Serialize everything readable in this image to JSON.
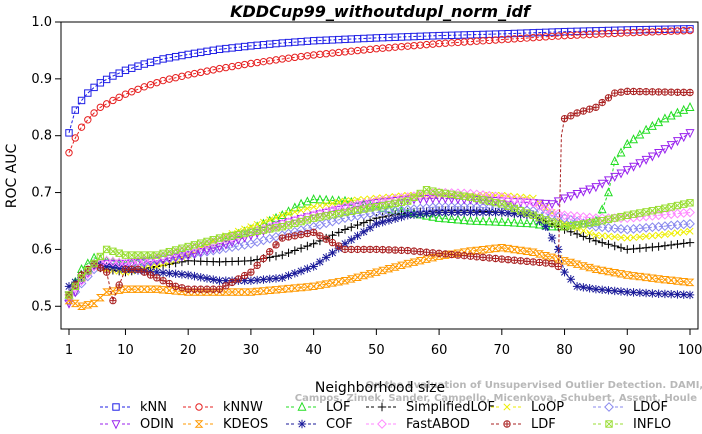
{
  "chart_data": {
    "type": "line",
    "title": "KDDCup99_withoutdupl_norm_idf",
    "xlabel": "Neighborhood size",
    "ylabel": "ROC AUC",
    "xlim": [
      1,
      100
    ],
    "ylim": [
      0.46,
      1.0
    ],
    "xticks": [
      1,
      10,
      20,
      30,
      40,
      50,
      60,
      70,
      80,
      90,
      100
    ],
    "yticks": [
      0.5,
      0.6,
      0.7,
      0.8,
      0.9,
      1.0
    ],
    "xtick_labels": [
      "1",
      "10",
      "20",
      "30",
      "40",
      "50",
      "60",
      "70",
      "80",
      "90",
      "100"
    ],
    "ytick_labels": [
      "0.5",
      "0.6",
      "0.7",
      "0.8",
      "0.9",
      "1.0"
    ],
    "watermark": [
      "Campos, Zimek, Sander, Campello, Micenkova, Schubert, Assent, Houle",
      "On the Evaluation of Unsupervised Outlier Detection. DAMI, 2015."
    ],
    "legend_position": "bottom",
    "series": [
      {
        "name": "kNN",
        "color": "#1f1fe6",
        "marker": "square",
        "points": [
          [
            1,
            0.805
          ],
          [
            2,
            0.845
          ],
          [
            3,
            0.862
          ],
          [
            4,
            0.875
          ],
          [
            5,
            0.885
          ],
          [
            6,
            0.893
          ],
          [
            8,
            0.905
          ],
          [
            10,
            0.915
          ],
          [
            13,
            0.926
          ],
          [
            16,
            0.935
          ],
          [
            20,
            0.943
          ],
          [
            25,
            0.952
          ],
          [
            30,
            0.958
          ],
          [
            35,
            0.963
          ],
          [
            40,
            0.967
          ],
          [
            50,
            0.972
          ],
          [
            60,
            0.976
          ],
          [
            70,
            0.979
          ],
          [
            80,
            0.983
          ],
          [
            90,
            0.986
          ],
          [
            100,
            0.988
          ]
        ]
      },
      {
        "name": "kNNW",
        "color": "#e62020",
        "marker": "circle",
        "points": [
          [
            1,
            0.77
          ],
          [
            2,
            0.796
          ],
          [
            3,
            0.815
          ],
          [
            4,
            0.828
          ],
          [
            5,
            0.84
          ],
          [
            6,
            0.85
          ],
          [
            8,
            0.862
          ],
          [
            10,
            0.873
          ],
          [
            13,
            0.886
          ],
          [
            16,
            0.897
          ],
          [
            20,
            0.907
          ],
          [
            25,
            0.918
          ],
          [
            30,
            0.927
          ],
          [
            35,
            0.935
          ],
          [
            40,
            0.942
          ],
          [
            50,
            0.953
          ],
          [
            60,
            0.962
          ],
          [
            70,
            0.969
          ],
          [
            80,
            0.976
          ],
          [
            90,
            0.981
          ],
          [
            100,
            0.985
          ]
        ]
      },
      {
        "name": "LOF",
        "color": "#22dd22",
        "marker": "triangle-up",
        "points": [
          [
            1,
            0.52
          ],
          [
            3,
            0.565
          ],
          [
            5,
            0.585
          ],
          [
            7,
            0.58
          ],
          [
            10,
            0.575
          ],
          [
            15,
            0.585
          ],
          [
            20,
            0.6
          ],
          [
            25,
            0.615
          ],
          [
            30,
            0.635
          ],
          [
            35,
            0.66
          ],
          [
            38,
            0.68
          ],
          [
            40,
            0.688
          ],
          [
            45,
            0.685
          ],
          [
            50,
            0.675
          ],
          [
            55,
            0.665
          ],
          [
            60,
            0.655
          ],
          [
            65,
            0.65
          ],
          [
            70,
            0.648
          ],
          [
            75,
            0.645
          ],
          [
            78,
            0.64
          ],
          [
            80,
            0.64
          ],
          [
            83,
            0.645
          ],
          [
            85,
            0.65
          ],
          [
            86,
            0.67
          ],
          [
            87,
            0.7
          ],
          [
            88,
            0.755
          ],
          [
            90,
            0.785
          ],
          [
            93,
            0.81
          ],
          [
            96,
            0.83
          ],
          [
            100,
            0.85
          ]
        ]
      },
      {
        "name": "SimplifiedLOF",
        "color": "#000000",
        "marker": "plus",
        "points": [
          [
            1,
            0.525
          ],
          [
            3,
            0.555
          ],
          [
            5,
            0.57
          ],
          [
            7,
            0.565
          ],
          [
            10,
            0.56
          ],
          [
            15,
            0.57
          ],
          [
            20,
            0.58
          ],
          [
            25,
            0.578
          ],
          [
            30,
            0.58
          ],
          [
            35,
            0.59
          ],
          [
            40,
            0.61
          ],
          [
            45,
            0.635
          ],
          [
            50,
            0.655
          ],
          [
            55,
            0.665
          ],
          [
            60,
            0.668
          ],
          [
            65,
            0.668
          ],
          [
            70,
            0.665
          ],
          [
            75,
            0.66
          ],
          [
            78,
            0.645
          ],
          [
            80,
            0.635
          ],
          [
            85,
            0.615
          ],
          [
            90,
            0.6
          ],
          [
            95,
            0.605
          ],
          [
            100,
            0.612
          ]
        ]
      },
      {
        "name": "LoOP",
        "color": "#eeee00",
        "marker": "cross",
        "points": [
          [
            1,
            0.52
          ],
          [
            3,
            0.55
          ],
          [
            5,
            0.57
          ],
          [
            7,
            0.565
          ],
          [
            10,
            0.56
          ],
          [
            15,
            0.57
          ],
          [
            20,
            0.59
          ],
          [
            25,
            0.62
          ],
          [
            30,
            0.64
          ],
          [
            35,
            0.66
          ],
          [
            40,
            0.675
          ],
          [
            45,
            0.685
          ],
          [
            50,
            0.69
          ],
          [
            55,
            0.695
          ],
          [
            60,
            0.695
          ],
          [
            65,
            0.695
          ],
          [
            70,
            0.695
          ],
          [
            75,
            0.69
          ],
          [
            78,
            0.665
          ],
          [
            80,
            0.645
          ],
          [
            85,
            0.625
          ],
          [
            90,
            0.62
          ],
          [
            95,
            0.625
          ],
          [
            100,
            0.632
          ]
        ]
      },
      {
        "name": "LDOF",
        "color": "#8888ee",
        "marker": "diamond",
        "points": [
          [
            1,
            0.51
          ],
          [
            3,
            0.54
          ],
          [
            5,
            0.565
          ],
          [
            7,
            0.575
          ],
          [
            10,
            0.57
          ],
          [
            15,
            0.58
          ],
          [
            20,
            0.59
          ],
          [
            25,
            0.6
          ],
          [
            30,
            0.61
          ],
          [
            35,
            0.625
          ],
          [
            40,
            0.64
          ],
          [
            45,
            0.655
          ],
          [
            50,
            0.665
          ],
          [
            55,
            0.67
          ],
          [
            60,
            0.675
          ],
          [
            65,
            0.675
          ],
          [
            70,
            0.672
          ],
          [
            75,
            0.668
          ],
          [
            78,
            0.66
          ],
          [
            80,
            0.655
          ],
          [
            85,
            0.64
          ],
          [
            90,
            0.635
          ],
          [
            95,
            0.64
          ],
          [
            100,
            0.645
          ]
        ]
      },
      {
        "name": "ODIN",
        "color": "#9922ee",
        "marker": "triangle-down",
        "points": [
          [
            1,
            0.505
          ],
          [
            3,
            0.545
          ],
          [
            5,
            0.57
          ],
          [
            7,
            0.575
          ],
          [
            10,
            0.575
          ],
          [
            15,
            0.58
          ],
          [
            20,
            0.59
          ],
          [
            25,
            0.605
          ],
          [
            30,
            0.625
          ],
          [
            35,
            0.645
          ],
          [
            40,
            0.66
          ],
          [
            45,
            0.672
          ],
          [
            50,
            0.682
          ],
          [
            55,
            0.688
          ],
          [
            60,
            0.69
          ],
          [
            65,
            0.688
          ],
          [
            70,
            0.685
          ],
          [
            75,
            0.682
          ],
          [
            78,
            0.68
          ],
          [
            80,
            0.69
          ],
          [
            85,
            0.71
          ],
          [
            90,
            0.74
          ],
          [
            95,
            0.77
          ],
          [
            100,
            0.805
          ]
        ]
      },
      {
        "name": "KDEOS",
        "color": "#ff9900",
        "marker": "hourglass",
        "points": [
          [
            1,
            0.51
          ],
          [
            3,
            0.5
          ],
          [
            5,
            0.505
          ],
          [
            7,
            0.525
          ],
          [
            10,
            0.53
          ],
          [
            15,
            0.53
          ],
          [
            20,
            0.525
          ],
          [
            25,
            0.525
          ],
          [
            30,
            0.525
          ],
          [
            35,
            0.53
          ],
          [
            40,
            0.535
          ],
          [
            45,
            0.545
          ],
          [
            50,
            0.56
          ],
          [
            55,
            0.575
          ],
          [
            60,
            0.588
          ],
          [
            65,
            0.597
          ],
          [
            70,
            0.603
          ],
          [
            75,
            0.595
          ],
          [
            80,
            0.58
          ],
          [
            85,
            0.565
          ],
          [
            90,
            0.555
          ],
          [
            95,
            0.548
          ],
          [
            100,
            0.542
          ]
        ]
      },
      {
        "name": "COF",
        "color": "#1a1a99",
        "marker": "star",
        "points": [
          [
            1,
            0.535
          ],
          [
            3,
            0.55
          ],
          [
            5,
            0.575
          ],
          [
            7,
            0.57
          ],
          [
            10,
            0.565
          ],
          [
            15,
            0.56
          ],
          [
            20,
            0.555
          ],
          [
            25,
            0.545
          ],
          [
            30,
            0.545
          ],
          [
            35,
            0.55
          ],
          [
            40,
            0.57
          ],
          [
            45,
            0.61
          ],
          [
            50,
            0.645
          ],
          [
            55,
            0.66
          ],
          [
            60,
            0.665
          ],
          [
            65,
            0.665
          ],
          [
            70,
            0.665
          ],
          [
            75,
            0.66
          ],
          [
            77,
            0.64
          ],
          [
            79,
            0.6
          ],
          [
            80,
            0.56
          ],
          [
            82,
            0.535
          ],
          [
            85,
            0.53
          ],
          [
            90,
            0.525
          ],
          [
            95,
            0.522
          ],
          [
            100,
            0.52
          ]
        ]
      },
      {
        "name": "FastABOD",
        "color": "#ff88ff",
        "marker": "diamond",
        "points": [
          [
            1,
            0.52
          ],
          [
            3,
            0.545
          ],
          [
            5,
            0.57
          ],
          [
            7,
            0.58
          ],
          [
            10,
            0.575
          ],
          [
            15,
            0.585
          ],
          [
            20,
            0.6
          ],
          [
            25,
            0.615
          ],
          [
            30,
            0.63
          ],
          [
            35,
            0.645
          ],
          [
            40,
            0.66
          ],
          [
            45,
            0.675
          ],
          [
            50,
            0.685
          ],
          [
            55,
            0.692
          ],
          [
            60,
            0.7
          ],
          [
            65,
            0.698
          ],
          [
            70,
            0.692
          ],
          [
            75,
            0.682
          ],
          [
            78,
            0.665
          ],
          [
            80,
            0.66
          ],
          [
            85,
            0.655
          ],
          [
            90,
            0.655
          ],
          [
            95,
            0.66
          ],
          [
            100,
            0.665
          ]
        ]
      },
      {
        "name": "LDF",
        "color": "#aa2222",
        "marker": "circle-plus",
        "points": [
          [
            1,
            0.52
          ],
          [
            3,
            0.555
          ],
          [
            5,
            0.575
          ],
          [
            7,
            0.56
          ],
          [
            8,
            0.51
          ],
          [
            10,
            0.565
          ],
          [
            12,
            0.565
          ],
          [
            15,
            0.55
          ],
          [
            18,
            0.535
          ],
          [
            20,
            0.53
          ],
          [
            25,
            0.53
          ],
          [
            30,
            0.56
          ],
          [
            35,
            0.62
          ],
          [
            40,
            0.63
          ],
          [
            45,
            0.6
          ],
          [
            50,
            0.6
          ],
          [
            55,
            0.598
          ],
          [
            60,
            0.593
          ],
          [
            65,
            0.588
          ],
          [
            70,
            0.583
          ],
          [
            75,
            0.578
          ],
          [
            78,
            0.575
          ],
          [
            79,
            0.57
          ],
          [
            79.5,
            0.8
          ],
          [
            80,
            0.83
          ],
          [
            82,
            0.84
          ],
          [
            85,
            0.85
          ],
          [
            88,
            0.875
          ],
          [
            90,
            0.878
          ],
          [
            95,
            0.877
          ],
          [
            100,
            0.876
          ]
        ]
      },
      {
        "name": "INFLO",
        "color": "#99dd33",
        "marker": "box-x",
        "points": [
          [
            1,
            0.52
          ],
          [
            3,
            0.55
          ],
          [
            5,
            0.575
          ],
          [
            7,
            0.6
          ],
          [
            10,
            0.59
          ],
          [
            15,
            0.59
          ],
          [
            20,
            0.605
          ],
          [
            25,
            0.62
          ],
          [
            30,
            0.63
          ],
          [
            35,
            0.64
          ],
          [
            40,
            0.655
          ],
          [
            45,
            0.665
          ],
          [
            50,
            0.675
          ],
          [
            55,
            0.685
          ],
          [
            58,
            0.705
          ],
          [
            60,
            0.7
          ],
          [
            65,
            0.692
          ],
          [
            70,
            0.68
          ],
          [
            75,
            0.66
          ],
          [
            80,
            0.64
          ],
          [
            85,
            0.648
          ],
          [
            90,
            0.66
          ],
          [
            95,
            0.67
          ],
          [
            100,
            0.682
          ]
        ]
      }
    ]
  }
}
